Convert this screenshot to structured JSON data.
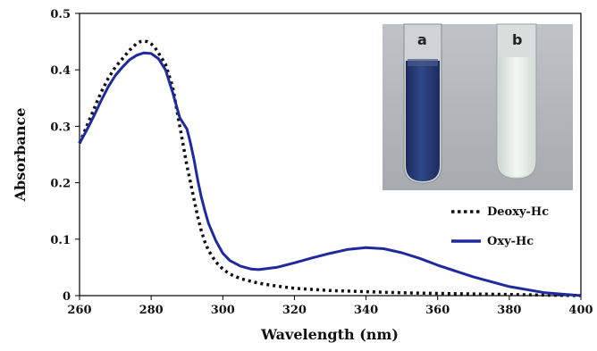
{
  "chart_data": {
    "type": "line",
    "title": "",
    "xlabel": "Wavelength (nm)",
    "ylabel": "Absorbance",
    "xlim": [
      260,
      400
    ],
    "ylim": [
      0,
      0.5
    ],
    "xticks": [
      260,
      280,
      300,
      320,
      340,
      360,
      380,
      400
    ],
    "yticks": [
      0,
      0.1,
      0.2,
      0.3,
      0.4,
      0.5
    ],
    "grid": false,
    "legend_position": "right",
    "series": [
      {
        "name": "Deoxy-Hc",
        "style": "dotted",
        "color": "#111111",
        "x": [
          260,
          262,
          264,
          266,
          268,
          270,
          272,
          274,
          276,
          277,
          278,
          279,
          280,
          281,
          282,
          284,
          286,
          288,
          289,
          290,
          291,
          292,
          293,
          294,
          295,
          296,
          298,
          300,
          302,
          305,
          310,
          315,
          320,
          330,
          340,
          350,
          360,
          370,
          380,
          390,
          400
        ],
        "y": [
          0.27,
          0.3,
          0.33,
          0.36,
          0.385,
          0.405,
          0.42,
          0.435,
          0.447,
          0.45,
          0.451,
          0.45,
          0.446,
          0.44,
          0.43,
          0.41,
          0.37,
          0.3,
          0.265,
          0.23,
          0.2,
          0.17,
          0.14,
          0.115,
          0.095,
          0.08,
          0.06,
          0.047,
          0.038,
          0.03,
          0.022,
          0.017,
          0.013,
          0.009,
          0.007,
          0.005,
          0.004,
          0.003,
          0.002,
          0.001,
          0.0
        ]
      },
      {
        "name": "Oxy-Hc",
        "style": "solid",
        "color": "#1f2a9e",
        "x": [
          260,
          262,
          264,
          266,
          268,
          270,
          272,
          274,
          276,
          278,
          280,
          282,
          284,
          286,
          288,
          289,
          290,
          291,
          292,
          293,
          294,
          295,
          296,
          298,
          300,
          302,
          305,
          308,
          310,
          315,
          320,
          325,
          330,
          335,
          340,
          345,
          350,
          355,
          360,
          370,
          380,
          390,
          400
        ],
        "y": [
          0.27,
          0.293,
          0.318,
          0.345,
          0.37,
          0.39,
          0.405,
          0.418,
          0.426,
          0.43,
          0.429,
          0.42,
          0.4,
          0.36,
          0.315,
          0.305,
          0.295,
          0.27,
          0.24,
          0.205,
          0.175,
          0.15,
          0.128,
          0.098,
          0.075,
          0.062,
          0.052,
          0.047,
          0.046,
          0.05,
          0.058,
          0.067,
          0.075,
          0.082,
          0.085,
          0.083,
          0.076,
          0.066,
          0.054,
          0.033,
          0.016,
          0.005,
          0.0
        ]
      }
    ],
    "inset": {
      "description_labels": [
        "a",
        "b"
      ],
      "tube_colors": [
        "#2a3f75",
        "#e4ece5"
      ]
    }
  }
}
